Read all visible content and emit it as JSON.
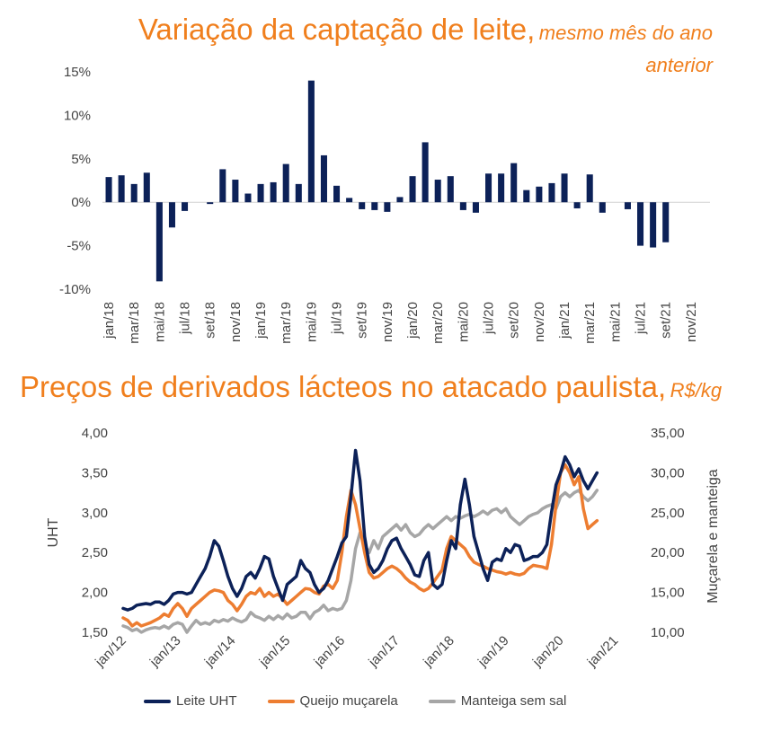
{
  "colors": {
    "title": "#f07f1d",
    "bar": "#0c2158",
    "uht": "#0c2158",
    "mussarela": "#ed7d31",
    "manteiga": "#a6a6a6"
  },
  "chart_data": [
    {
      "type": "bar",
      "title": "Variação da captação de leite,",
      "subtitle_line1": "mesmo mês do ano",
      "subtitle_line2": "anterior",
      "ylim": [
        -10,
        15
      ],
      "yticks": [
        "15%",
        "10%",
        "5%",
        "0%",
        "-5%",
        "-10%"
      ],
      "ytick_values": [
        15,
        10,
        5,
        0,
        -5,
        -10
      ],
      "categories": [
        "jan/18",
        "fev/18",
        "mar/18",
        "abr/18",
        "mai/18",
        "jun/18",
        "jul/18",
        "ago/18",
        "set/18",
        "out/18",
        "nov/18",
        "dez/18",
        "jan/19",
        "fev/19",
        "mar/19",
        "abr/19",
        "mai/19",
        "jun/19",
        "jul/19",
        "ago/19",
        "set/19",
        "out/19",
        "nov/19",
        "dez/19",
        "jan/20",
        "fev/20",
        "mar/20",
        "abr/20",
        "mai/20",
        "jun/20",
        "jul/20",
        "ago/20",
        "set/20",
        "out/20",
        "nov/20",
        "dez/20",
        "jan/21",
        "fev/21",
        "mar/21",
        "abr/21",
        "mai/21",
        "jun/21",
        "jul/21",
        "ago/21",
        "set/21",
        "out/21",
        "nov/21",
        "dez/21"
      ],
      "tick_labels": [
        "jan/18",
        "mar/18",
        "mai/18",
        "jul/18",
        "set/18",
        "nov/18",
        "jan/19",
        "mar/19",
        "mai/19",
        "jul/19",
        "set/19",
        "nov/19",
        "jan/20",
        "mar/20",
        "mai/20",
        "jul/20",
        "set/20",
        "nov/20",
        "jan/21",
        "mar/21",
        "mai/21",
        "jul/21",
        "set/21",
        "nov/21"
      ],
      "values": [
        2.9,
        3.1,
        2.1,
        3.4,
        -9.1,
        -2.9,
        -1.0,
        0.0,
        -0.2,
        3.8,
        2.6,
        1.0,
        2.1,
        2.3,
        4.4,
        2.1,
        14.0,
        5.4,
        1.9,
        0.5,
        -0.8,
        -0.9,
        -1.1,
        0.6,
        3.0,
        6.9,
        2.6,
        3.0,
        -0.9,
        -1.2,
        3.3,
        3.3,
        4.5,
        1.4,
        1.8,
        2.2,
        3.3,
        -0.7,
        3.2,
        -1.2,
        0.0,
        -0.8,
        -5.0,
        -5.2,
        -4.6,
        0.0,
        0.0,
        0.0
      ]
    },
    {
      "type": "line",
      "title": "Preços de derivados lácteos no atacado paulista,",
      "subtitle": "R$/kg",
      "ylabel": "UHT",
      "y2label": "Muçarela e manteiga",
      "ylim": [
        1.5,
        4.0
      ],
      "y2lim": [
        10,
        35
      ],
      "yticks": [
        "4,00",
        "3,50",
        "3,00",
        "2,50",
        "2,00",
        "1,50"
      ],
      "ytick_values": [
        4.0,
        3.5,
        3.0,
        2.5,
        2.0,
        1.5
      ],
      "y2ticks": [
        "35,00",
        "30,00",
        "25,00",
        "20,00",
        "15,00",
        "10,00"
      ],
      "y2tick_values": [
        35,
        30,
        25,
        20,
        15,
        10
      ],
      "x_start": "jan/12",
      "tick_labels": [
        "jan/12",
        "jan/13",
        "jan/14",
        "jan/15",
        "jan/16",
        "jan/17",
        "jan/18",
        "jan/19",
        "jan/20",
        "jan/21"
      ],
      "series": [
        {
          "name": "Leite UHT",
          "axis": "left",
          "values": [
            1.8,
            1.78,
            1.8,
            1.84,
            1.85,
            1.86,
            1.85,
            1.88,
            1.88,
            1.85,
            1.9,
            1.98,
            2.0,
            2.0,
            1.98,
            2.0,
            2.1,
            2.2,
            2.3,
            2.45,
            2.65,
            2.58,
            2.4,
            2.2,
            2.05,
            1.95,
            2.05,
            2.2,
            2.25,
            2.18,
            2.3,
            2.45,
            2.42,
            2.2,
            2.05,
            1.9,
            2.1,
            2.15,
            2.2,
            2.4,
            2.3,
            2.25,
            2.1,
            2.0,
            2.05,
            2.15,
            2.3,
            2.45,
            2.62,
            2.7,
            3.2,
            3.78,
            3.4,
            2.7,
            2.35,
            2.25,
            2.3,
            2.4,
            2.55,
            2.65,
            2.68,
            2.55,
            2.45,
            2.35,
            2.22,
            2.2,
            2.4,
            2.5,
            2.1,
            2.05,
            2.1,
            2.4,
            2.65,
            2.55,
            3.1,
            3.42,
            3.1,
            2.7,
            2.5,
            2.3,
            2.15,
            2.38,
            2.42,
            2.4,
            2.55,
            2.5,
            2.6,
            2.58,
            2.4,
            2.42,
            2.45,
            2.45,
            2.5,
            2.6,
            3.0,
            3.35,
            3.5,
            3.7,
            3.6,
            3.45,
            3.55,
            3.4,
            3.3,
            3.4,
            3.5
          ],
          "color": "#0c2158"
        },
        {
          "name": "Queijo muçarela",
          "axis": "right",
          "values": [
            11.8,
            11.5,
            10.8,
            11.2,
            10.8,
            11.0,
            11.2,
            11.5,
            11.8,
            12.3,
            12.0,
            13.0,
            13.6,
            13.0,
            12.0,
            13.0,
            13.5,
            14.0,
            14.5,
            15.0,
            15.3,
            15.2,
            15.0,
            14.0,
            13.5,
            12.7,
            13.5,
            14.5,
            15.0,
            14.8,
            15.5,
            14.5,
            15.0,
            14.5,
            14.8,
            14.2,
            13.5,
            14.0,
            14.5,
            15.0,
            15.5,
            15.4,
            15.0,
            14.8,
            15.8,
            16.0,
            15.5,
            16.5,
            20.0,
            24.5,
            27.8,
            26.0,
            23.0,
            20.0,
            17.5,
            16.8,
            17.0,
            17.5,
            18.0,
            18.3,
            18.0,
            17.5,
            16.8,
            16.3,
            16.0,
            15.5,
            15.2,
            15.5,
            16.2,
            17.0,
            17.8,
            20.5,
            22.0,
            21.5,
            21.0,
            20.5,
            19.5,
            18.8,
            18.5,
            18.3,
            18.0,
            17.8,
            17.6,
            17.5,
            17.3,
            17.5,
            17.3,
            17.2,
            17.4,
            18.0,
            18.4,
            18.3,
            18.2,
            18.0,
            21.0,
            26.0,
            30.0,
            31.0,
            30.0,
            28.5,
            29.5,
            25.5,
            23.0,
            23.5,
            24.0
          ],
          "color": "#ed7d31"
        },
        {
          "name": "Manteiga sem sal",
          "axis": "right",
          "values": [
            10.8,
            10.6,
            10.2,
            10.4,
            10.0,
            10.3,
            10.5,
            10.6,
            10.5,
            10.8,
            10.5,
            11.0,
            11.2,
            11.0,
            10.0,
            10.8,
            11.5,
            11.0,
            11.2,
            11.0,
            11.5,
            11.3,
            11.6,
            11.4,
            11.8,
            11.5,
            11.3,
            11.6,
            12.5,
            12.0,
            11.8,
            11.5,
            12.0,
            11.6,
            12.1,
            11.7,
            12.3,
            11.8,
            12.0,
            12.5,
            12.5,
            11.7,
            12.5,
            12.8,
            13.4,
            12.7,
            13.0,
            12.8,
            13.0,
            14.0,
            16.5,
            20.5,
            22.5,
            21.0,
            20.0,
            21.5,
            20.5,
            22.0,
            22.5,
            23.0,
            23.5,
            22.8,
            23.5,
            22.5,
            22.0,
            22.3,
            23.0,
            23.5,
            23.0,
            23.5,
            24.0,
            24.5,
            24.0,
            24.5,
            24.3,
            24.6,
            24.8,
            24.5,
            24.8,
            25.2,
            24.8,
            25.3,
            25.5,
            25.0,
            25.5,
            24.5,
            24.0,
            23.5,
            24.0,
            24.5,
            24.8,
            25.0,
            25.5,
            25.8,
            26.0,
            25.5,
            27.0,
            27.5,
            27.0,
            27.5,
            27.8,
            27.0,
            26.5,
            27.0,
            27.8
          ],
          "color": "#a6a6a6"
        }
      ]
    }
  ]
}
